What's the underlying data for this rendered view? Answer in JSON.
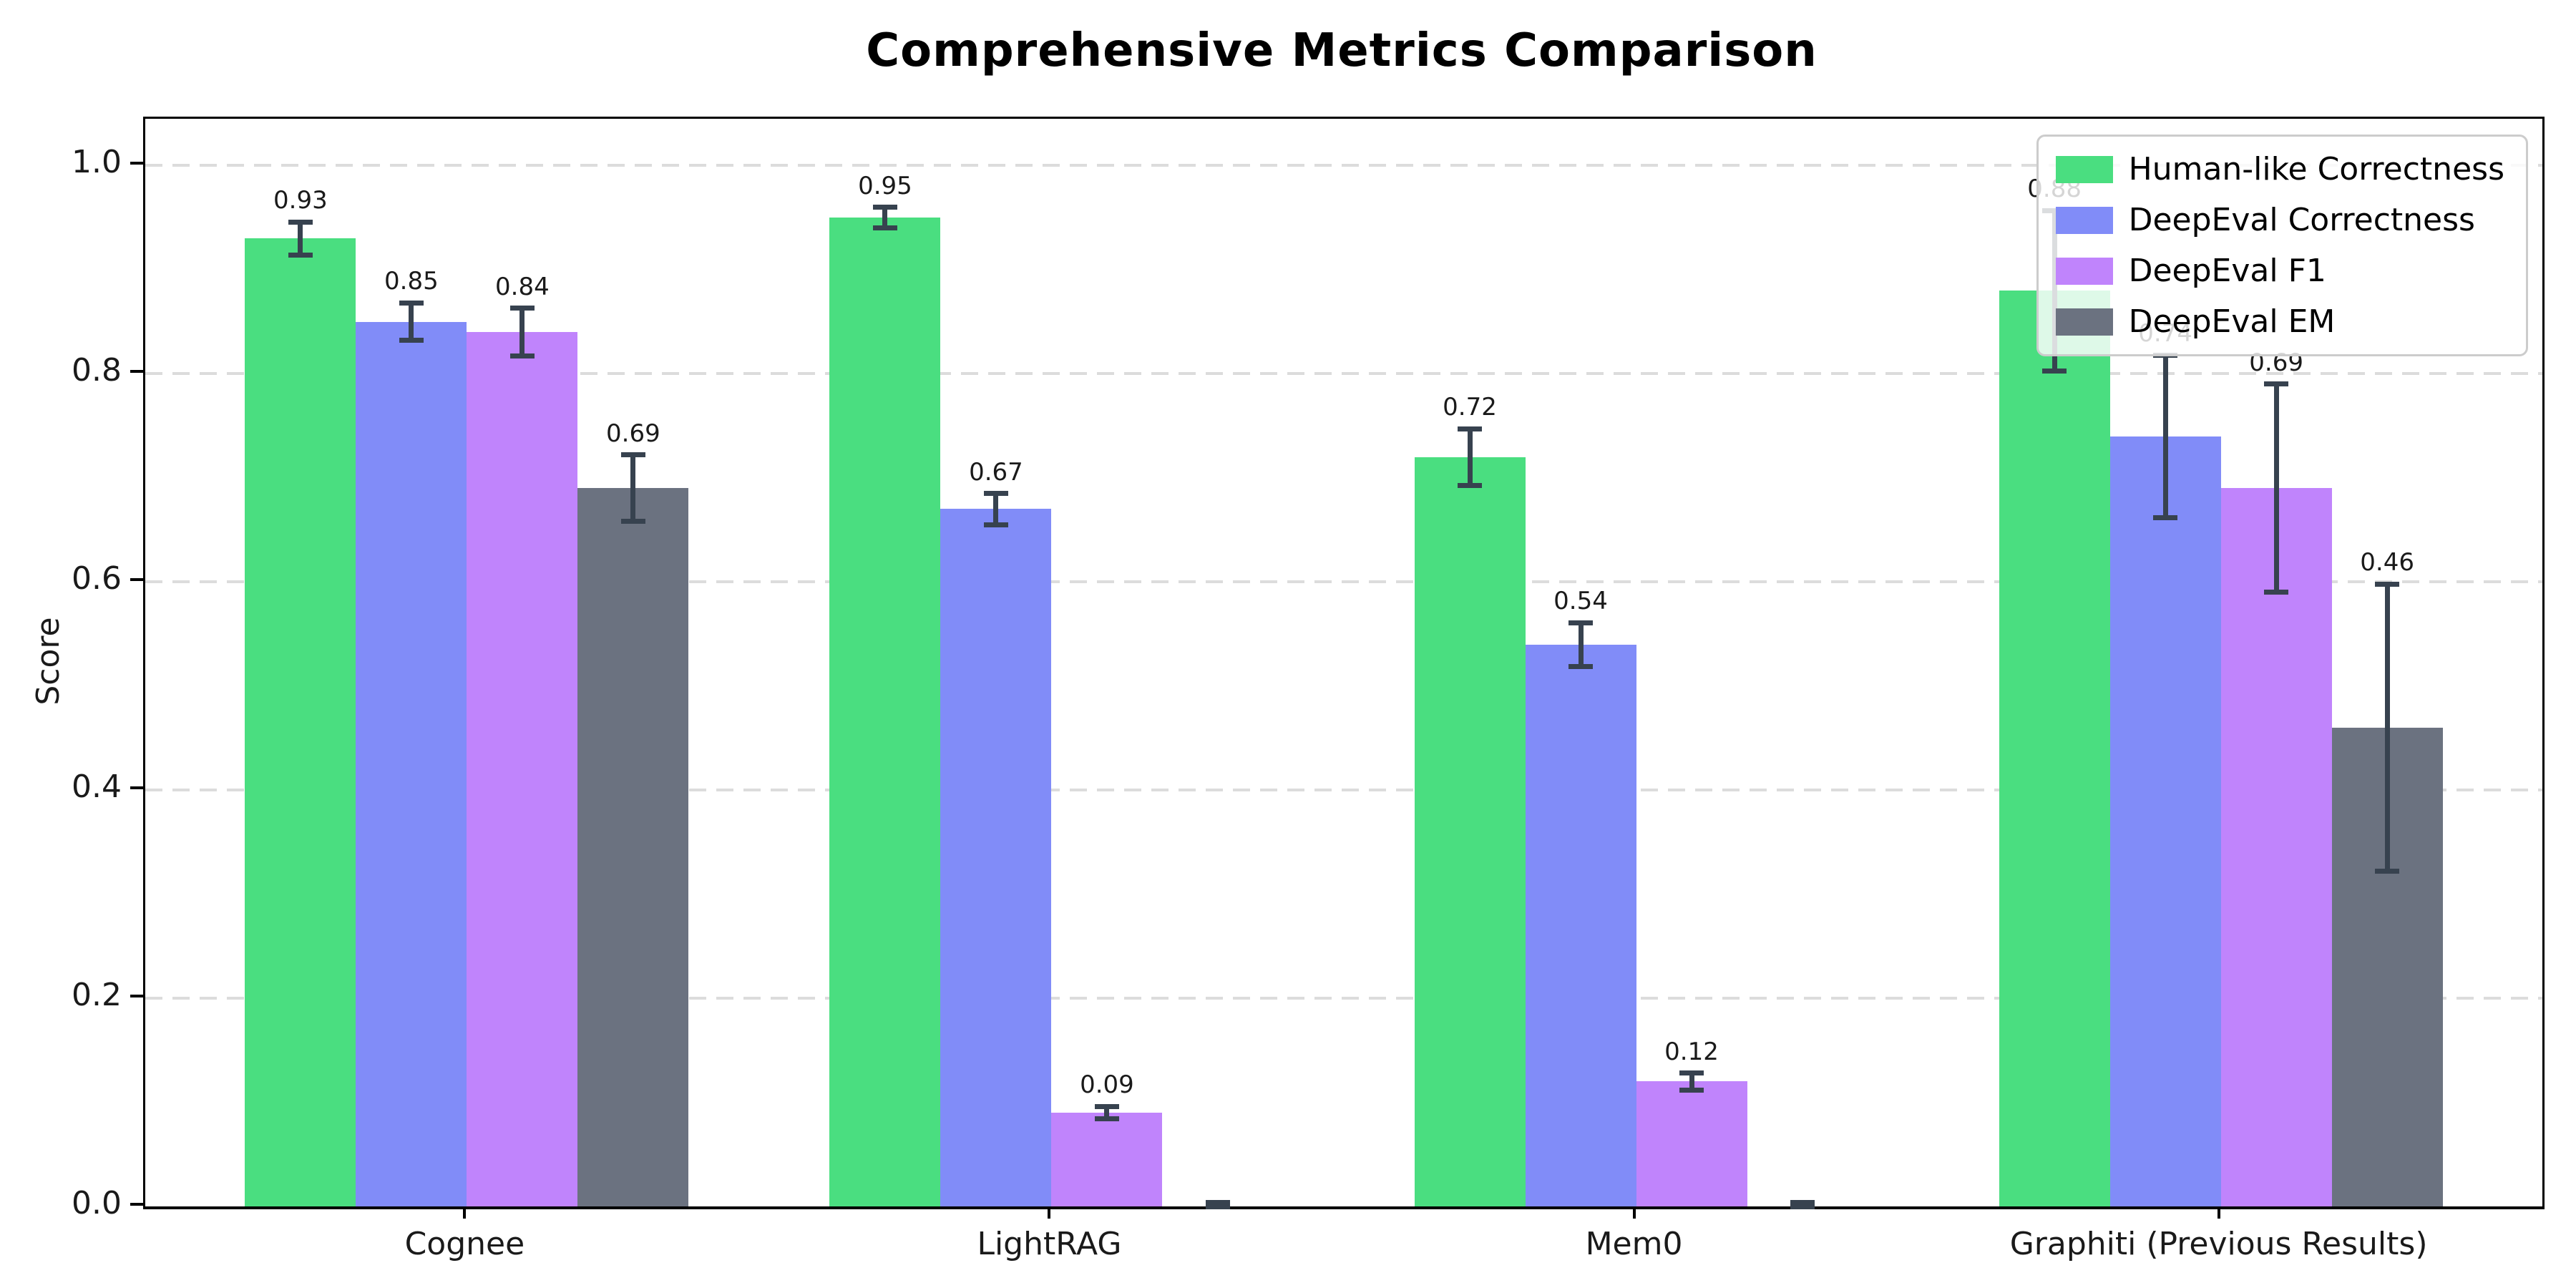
{
  "chart_data": {
    "type": "bar",
    "title": "Comprehensive Metrics Comparison",
    "ylabel": "Score",
    "xlabel": "",
    "categories": [
      "Cognee",
      "LightRAG",
      "Mem0",
      "Graphiti (Previous Results)"
    ],
    "series": [
      {
        "name": "Human-like Correctness",
        "color": "#4ade80",
        "values": [
          0.93,
          0.95,
          0.72,
          0.88
        ],
        "errors": [
          0.016,
          0.01,
          0.027,
          0.077
        ],
        "bar_labels": [
          "0.93",
          "0.95",
          "0.72",
          "0.88"
        ]
      },
      {
        "name": "DeepEval Correctness",
        "color": "#818cf8",
        "values": [
          0.85,
          0.67,
          0.54,
          0.74
        ],
        "errors": [
          0.018,
          0.015,
          0.021,
          0.078
        ],
        "bar_labels": [
          "0.85",
          "0.67",
          "0.54",
          "0.74"
        ]
      },
      {
        "name": "DeepEval F1",
        "color": "#c084fc",
        "values": [
          0.84,
          0.09,
          0.12,
          0.69
        ],
        "errors": [
          0.023,
          0.006,
          0.008,
          0.1
        ],
        "bar_labels": [
          "0.84",
          "0.09",
          "0.12",
          "0.69"
        ]
      },
      {
        "name": "DeepEval EM",
        "color": "#6b7280",
        "values": [
          0.69,
          0.0,
          0.0,
          0.46
        ],
        "errors": [
          0.032,
          0.004,
          0.004,
          0.138
        ],
        "bar_labels": [
          "0.69",
          "",
          "",
          "0.46"
        ]
      }
    ],
    "yticks": [
      "0.0",
      "0.2",
      "0.4",
      "0.6",
      "0.8",
      "1.0"
    ],
    "ylim": [
      0,
      1.045
    ],
    "grid": "horizontal-dashed",
    "legend_position": "upper-right",
    "colors": {
      "error_bar": "#37424f",
      "gridline": "#dcdcdc",
      "axis": "#000000",
      "text": "#1a1a1a",
      "legend_border": "#cccccc",
      "background": "#ffffff"
    }
  }
}
